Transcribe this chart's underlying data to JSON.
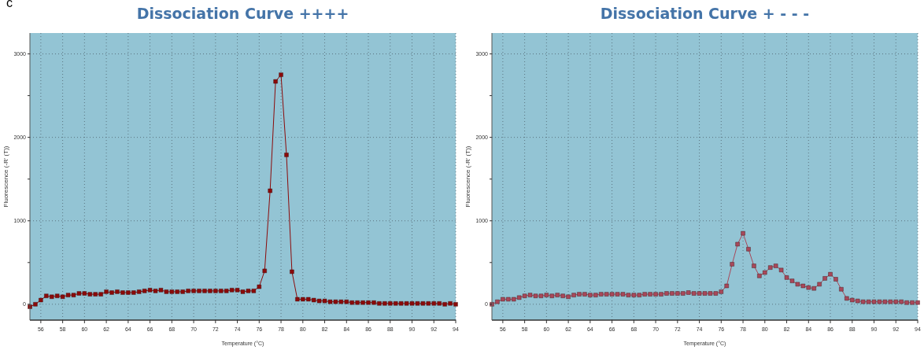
{
  "chart_data": [
    {
      "type": "line",
      "title": "Dissociation Curve ++++",
      "xlabel": "Temperature (°C)",
      "ylabel": "Fluorescence (-R' (T))",
      "annotations": [
        "c"
      ],
      "marker": "square",
      "grid": true,
      "xlim": [
        55,
        94
      ],
      "ylim": [
        -190,
        3250
      ],
      "xticks": [
        56,
        58,
        60,
        62,
        64,
        66,
        68,
        70,
        72,
        74,
        76,
        78,
        80,
        82,
        84,
        86,
        88,
        90,
        92,
        94
      ],
      "yticks": [
        0,
        {
          "value": 500,
          "label": null
        },
        1000,
        {
          "value": 1500,
          "label": null
        },
        2000,
        {
          "value": 2500,
          "label": null
        },
        3000
      ],
      "series": [
        {
          "color": "#8b0a0a",
          "x": [
            55,
            55.5,
            56,
            56.5,
            57,
            57.5,
            58,
            58.5,
            59,
            59.5,
            60,
            60.5,
            61,
            61.5,
            62,
            62.5,
            63,
            63.5,
            64,
            64.5,
            65,
            65.5,
            66,
            66.5,
            67,
            67.5,
            68,
            68.5,
            69,
            69.5,
            70,
            70.5,
            71,
            71.5,
            72,
            72.5,
            73,
            73.5,
            74,
            74.5,
            75,
            75.5,
            76,
            76.5,
            77,
            77.5,
            78,
            78.5,
            79,
            79.5,
            80,
            80.5,
            81,
            81.5,
            82,
            82.5,
            83,
            83.5,
            84,
            84.5,
            85,
            85.5,
            86,
            86.5,
            87,
            87.5,
            88,
            88.5,
            89,
            89.5,
            90,
            90.5,
            91,
            91.5,
            92,
            92.5,
            93,
            93.5,
            94
          ],
          "values": [
            -30,
            0,
            50,
            100,
            90,
            100,
            90,
            110,
            110,
            130,
            130,
            120,
            120,
            120,
            150,
            140,
            150,
            140,
            140,
            140,
            150,
            160,
            170,
            160,
            170,
            150,
            150,
            150,
            150,
            160,
            160,
            160,
            160,
            160,
            160,
            160,
            160,
            170,
            170,
            150,
            160,
            160,
            210,
            400,
            1360,
            2670,
            2750,
            1790,
            390,
            60,
            60,
            60,
            50,
            40,
            40,
            30,
            30,
            30,
            30,
            20,
            20,
            20,
            20,
            20,
            10,
            10,
            10,
            10,
            10,
            10,
            10,
            10,
            10,
            10,
            10,
            10,
            0,
            10,
            0
          ]
        }
      ]
    },
    {
      "type": "line",
      "title": "Dissociation Curve + - - -",
      "xlabel": "Temperature (°C)",
      "ylabel": "Fluorescence (-R' (T))",
      "marker": "square",
      "grid": true,
      "xlim": [
        55,
        94
      ],
      "ylim": [
        -190,
        3250
      ],
      "xticks": [
        56,
        58,
        60,
        62,
        64,
        66,
        68,
        70,
        72,
        74,
        76,
        78,
        80,
        82,
        84,
        86,
        88,
        90,
        92,
        94
      ],
      "yticks": [
        0,
        {
          "value": 500,
          "label": null
        },
        1000,
        {
          "value": 1500,
          "label": null
        },
        2000,
        {
          "value": 2500,
          "label": null
        },
        3000
      ],
      "series": [
        {
          "color": "#a8485a",
          "x": [
            55,
            55.5,
            56,
            56.5,
            57,
            57.5,
            58,
            58.5,
            59,
            59.5,
            60,
            60.5,
            61,
            61.5,
            62,
            62.5,
            63,
            63.5,
            64,
            64.5,
            65,
            65.5,
            66,
            66.5,
            67,
            67.5,
            68,
            68.5,
            69,
            69.5,
            70,
            70.5,
            71,
            71.5,
            72,
            72.5,
            73,
            73.5,
            74,
            74.5,
            75,
            75.5,
            76,
            76.5,
            77,
            77.5,
            78,
            78.5,
            79,
            79.5,
            80,
            80.5,
            81,
            81.5,
            82,
            82.5,
            83,
            83.5,
            84,
            84.5,
            85,
            85.5,
            86,
            86.5,
            87,
            87.5,
            88,
            88.5,
            89,
            89.5,
            90,
            90.5,
            91,
            91.5,
            92,
            92.5,
            93,
            93.5,
            94
          ],
          "values": [
            0,
            30,
            60,
            60,
            60,
            80,
            100,
            110,
            100,
            100,
            110,
            100,
            110,
            100,
            90,
            110,
            120,
            120,
            110,
            110,
            120,
            120,
            120,
            120,
            120,
            110,
            110,
            110,
            120,
            120,
            120,
            120,
            130,
            130,
            130,
            130,
            140,
            130,
            130,
            130,
            130,
            130,
            150,
            220,
            480,
            720,
            850,
            660,
            460,
            340,
            380,
            440,
            460,
            410,
            320,
            280,
            240,
            220,
            200,
            190,
            240,
            310,
            360,
            300,
            180,
            70,
            50,
            40,
            30,
            30,
            30,
            30,
            30,
            30,
            30,
            30,
            20,
            20,
            20
          ]
        }
      ]
    }
  ]
}
